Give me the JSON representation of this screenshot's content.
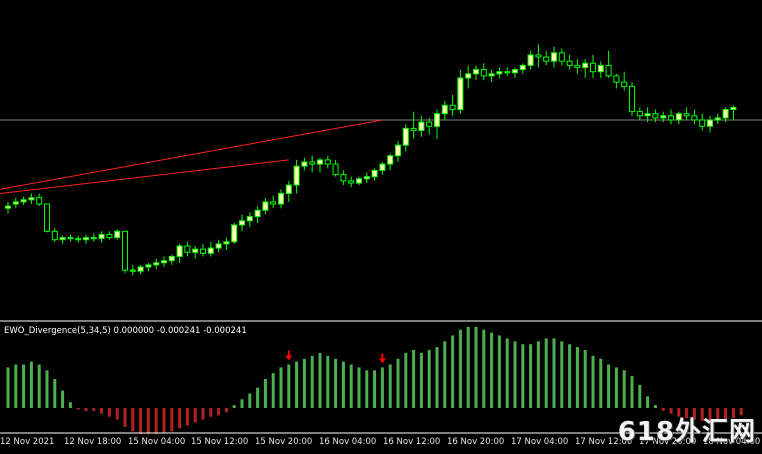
{
  "indicator": {
    "label": "EWO_Divergence(5,34,5) 0.000000 -0.000241 -0.000241"
  },
  "time_axis": {
    "ticks": [
      "12 Nov 2021",
      "12 Nov 18:00",
      "15 Nov 04:00",
      "15 Nov 12:00",
      "15 Nov 20:00",
      "16 Nov 04:00",
      "16 Nov 12:00",
      "16 Nov 20:00",
      "17 Nov 04:00",
      "17 Nov 12:00",
      "17 Nov 20:00",
      "18 Nov 04:00"
    ]
  },
  "watermark": "618外汇网",
  "colors": {
    "background": "#000000",
    "bull_candle": "#ffffb0",
    "candle_wick": "#00ff00",
    "ewo_positive": "#4caf50",
    "ewo_negative": "#b22222",
    "trendline": "#ff2020",
    "divergence_arrow": "#ff0000",
    "horizontal_line": "#808080",
    "separator": "#ffffff"
  },
  "chart_data": [
    {
      "type": "candlestick",
      "x_type": "bar_index",
      "ohlc": [
        [
          16,
          22,
          11,
          18
        ],
        [
          20,
          26,
          16,
          22
        ],
        [
          22,
          27,
          19,
          24
        ],
        [
          24,
          30,
          20,
          26
        ],
        [
          26,
          30,
          18,
          20
        ],
        [
          20,
          20,
          -7,
          -6
        ],
        [
          -6,
          -3,
          -16,
          -14
        ],
        [
          -14,
          -10,
          -18,
          -12
        ],
        [
          -12,
          -9,
          -16,
          -13
        ],
        [
          -13,
          -10,
          -17,
          -14
        ],
        [
          -14,
          -9,
          -18,
          -12
        ],
        [
          -12,
          -8,
          -16,
          -13
        ],
        [
          -13,
          -6,
          -17,
          -9
        ],
        [
          -9,
          -6,
          -14,
          -12
        ],
        [
          -12,
          -4,
          -14,
          -6
        ],
        [
          -6,
          -6,
          -46,
          -43
        ],
        [
          -43,
          -38,
          -48,
          -44
        ],
        [
          -44,
          -38,
          -47,
          -40
        ],
        [
          -40,
          -36,
          -44,
          -38
        ],
        [
          -38,
          -32,
          -42,
          -36
        ],
        [
          -36,
          -30,
          -40,
          -34
        ],
        [
          -34,
          -28,
          -38,
          -30
        ],
        [
          -30,
          -18,
          -36,
          -20
        ],
        [
          -20,
          -16,
          -30,
          -26
        ],
        [
          -26,
          -20,
          -32,
          -23
        ],
        [
          -23,
          -18,
          -30,
          -27
        ],
        [
          -27,
          -16,
          -30,
          -22
        ],
        [
          -22,
          -14,
          -26,
          -18
        ],
        [
          -18,
          -12,
          -24,
          -16
        ],
        [
          -16,
          2,
          -18,
          0
        ],
        [
          0,
          10,
          -6,
          4
        ],
        [
          4,
          12,
          -2,
          8
        ],
        [
          8,
          18,
          2,
          14
        ],
        [
          14,
          26,
          10,
          22
        ],
        [
          22,
          28,
          16,
          20
        ],
        [
          20,
          34,
          16,
          30
        ],
        [
          30,
          42,
          22,
          38
        ],
        [
          38,
          62,
          30,
          56
        ],
        [
          56,
          64,
          52,
          60
        ],
        [
          60,
          66,
          50,
          58
        ],
        [
          58,
          64,
          50,
          62
        ],
        [
          62,
          66,
          54,
          58
        ],
        [
          58,
          62,
          46,
          48
        ],
        [
          48,
          52,
          38,
          42
        ],
        [
          42,
          46,
          36,
          40
        ],
        [
          40,
          46,
          38,
          44
        ],
        [
          44,
          50,
          40,
          46
        ],
        [
          46,
          54,
          42,
          52
        ],
        [
          52,
          60,
          48,
          58
        ],
        [
          58,
          68,
          52,
          66
        ],
        [
          66,
          80,
          60,
          76
        ],
        [
          76,
          96,
          70,
          92
        ],
        [
          92,
          108,
          82,
          90
        ],
        [
          90,
          104,
          84,
          98
        ],
        [
          98,
          102,
          86,
          94
        ],
        [
          94,
          110,
          82,
          106
        ],
        [
          106,
          118,
          100,
          114
        ],
        [
          114,
          124,
          104,
          110
        ],
        [
          110,
          148,
          106,
          140
        ],
        [
          140,
          152,
          130,
          144
        ],
        [
          144,
          152,
          138,
          148
        ],
        [
          148,
          154,
          138,
          142
        ],
        [
          142,
          148,
          136,
          144
        ],
        [
          144,
          150,
          140,
          146
        ],
        [
          146,
          150,
          142,
          145
        ],
        [
          145,
          150,
          140,
          148
        ],
        [
          148,
          154,
          144,
          152
        ],
        [
          152,
          166,
          148,
          162
        ],
        [
          162,
          172,
          150,
          160
        ],
        [
          160,
          166,
          152,
          156
        ],
        [
          156,
          170,
          150,
          164
        ],
        [
          164,
          168,
          152,
          156
        ],
        [
          156,
          162,
          148,
          152
        ],
        [
          152,
          158,
          144,
          150
        ],
        [
          150,
          158,
          140,
          154
        ],
        [
          154,
          162,
          140,
          146
        ],
        [
          146,
          156,
          140,
          152
        ],
        [
          152,
          166,
          140,
          142
        ],
        [
          142,
          144,
          130,
          136
        ],
        [
          136,
          146,
          128,
          132
        ],
        [
          132,
          136,
          104,
          108
        ],
        [
          108,
          112,
          100,
          104
        ],
        [
          104,
          112,
          98,
          106
        ],
        [
          106,
          110,
          98,
          102
        ],
        [
          102,
          108,
          98,
          104
        ],
        [
          104,
          110,
          96,
          100
        ],
        [
          100,
          108,
          96,
          106
        ],
        [
          106,
          112,
          100,
          104
        ],
        [
          104,
          110,
          96,
          100
        ],
        [
          100,
          106,
          90,
          94
        ],
        [
          94,
          104,
          88,
          100
        ],
        [
          100,
          106,
          96,
          102
        ],
        [
          102,
          112,
          98,
          110
        ],
        [
          110,
          114,
          100,
          112
        ]
      ],
      "trendlines": [
        {
          "from_bar": 0,
          "from_value": 34,
          "to_bar": 48,
          "to_value": 100
        },
        {
          "from_bar": 0,
          "from_value": 30,
          "to_bar": 36,
          "to_value": 62
        }
      ],
      "horizontal_line": 100
    },
    {
      "type": "bar",
      "title": "EWO_Divergence(5,34,5)",
      "values": [
        0.0,
        -0.000241,
        -0.000241
      ],
      "histogram": [
        28,
        30,
        30,
        32,
        30,
        26,
        20,
        12,
        4,
        -1,
        -2,
        -2,
        -4,
        -6,
        -8,
        -13,
        -16,
        -18,
        -18,
        -18,
        -17,
        -16,
        -14,
        -12,
        -10,
        -8,
        -6,
        -5,
        -3,
        2,
        6,
        10,
        14,
        20,
        24,
        28,
        30,
        32,
        34,
        36,
        38,
        36,
        34,
        32,
        30,
        28,
        26,
        26,
        28,
        30,
        34,
        38,
        40,
        38,
        40,
        42,
        46,
        50,
        54,
        56,
        56,
        54,
        52,
        50,
        48,
        46,
        44,
        44,
        46,
        48,
        48,
        46,
        44,
        42,
        40,
        36,
        34,
        30,
        28,
        26,
        22,
        16,
        8,
        2,
        -2,
        -4,
        -6,
        -7,
        -8,
        -9,
        -9,
        -9,
        -8,
        -7,
        -5
      ],
      "divergence_arrows_at": [
        36,
        48
      ]
    }
  ]
}
